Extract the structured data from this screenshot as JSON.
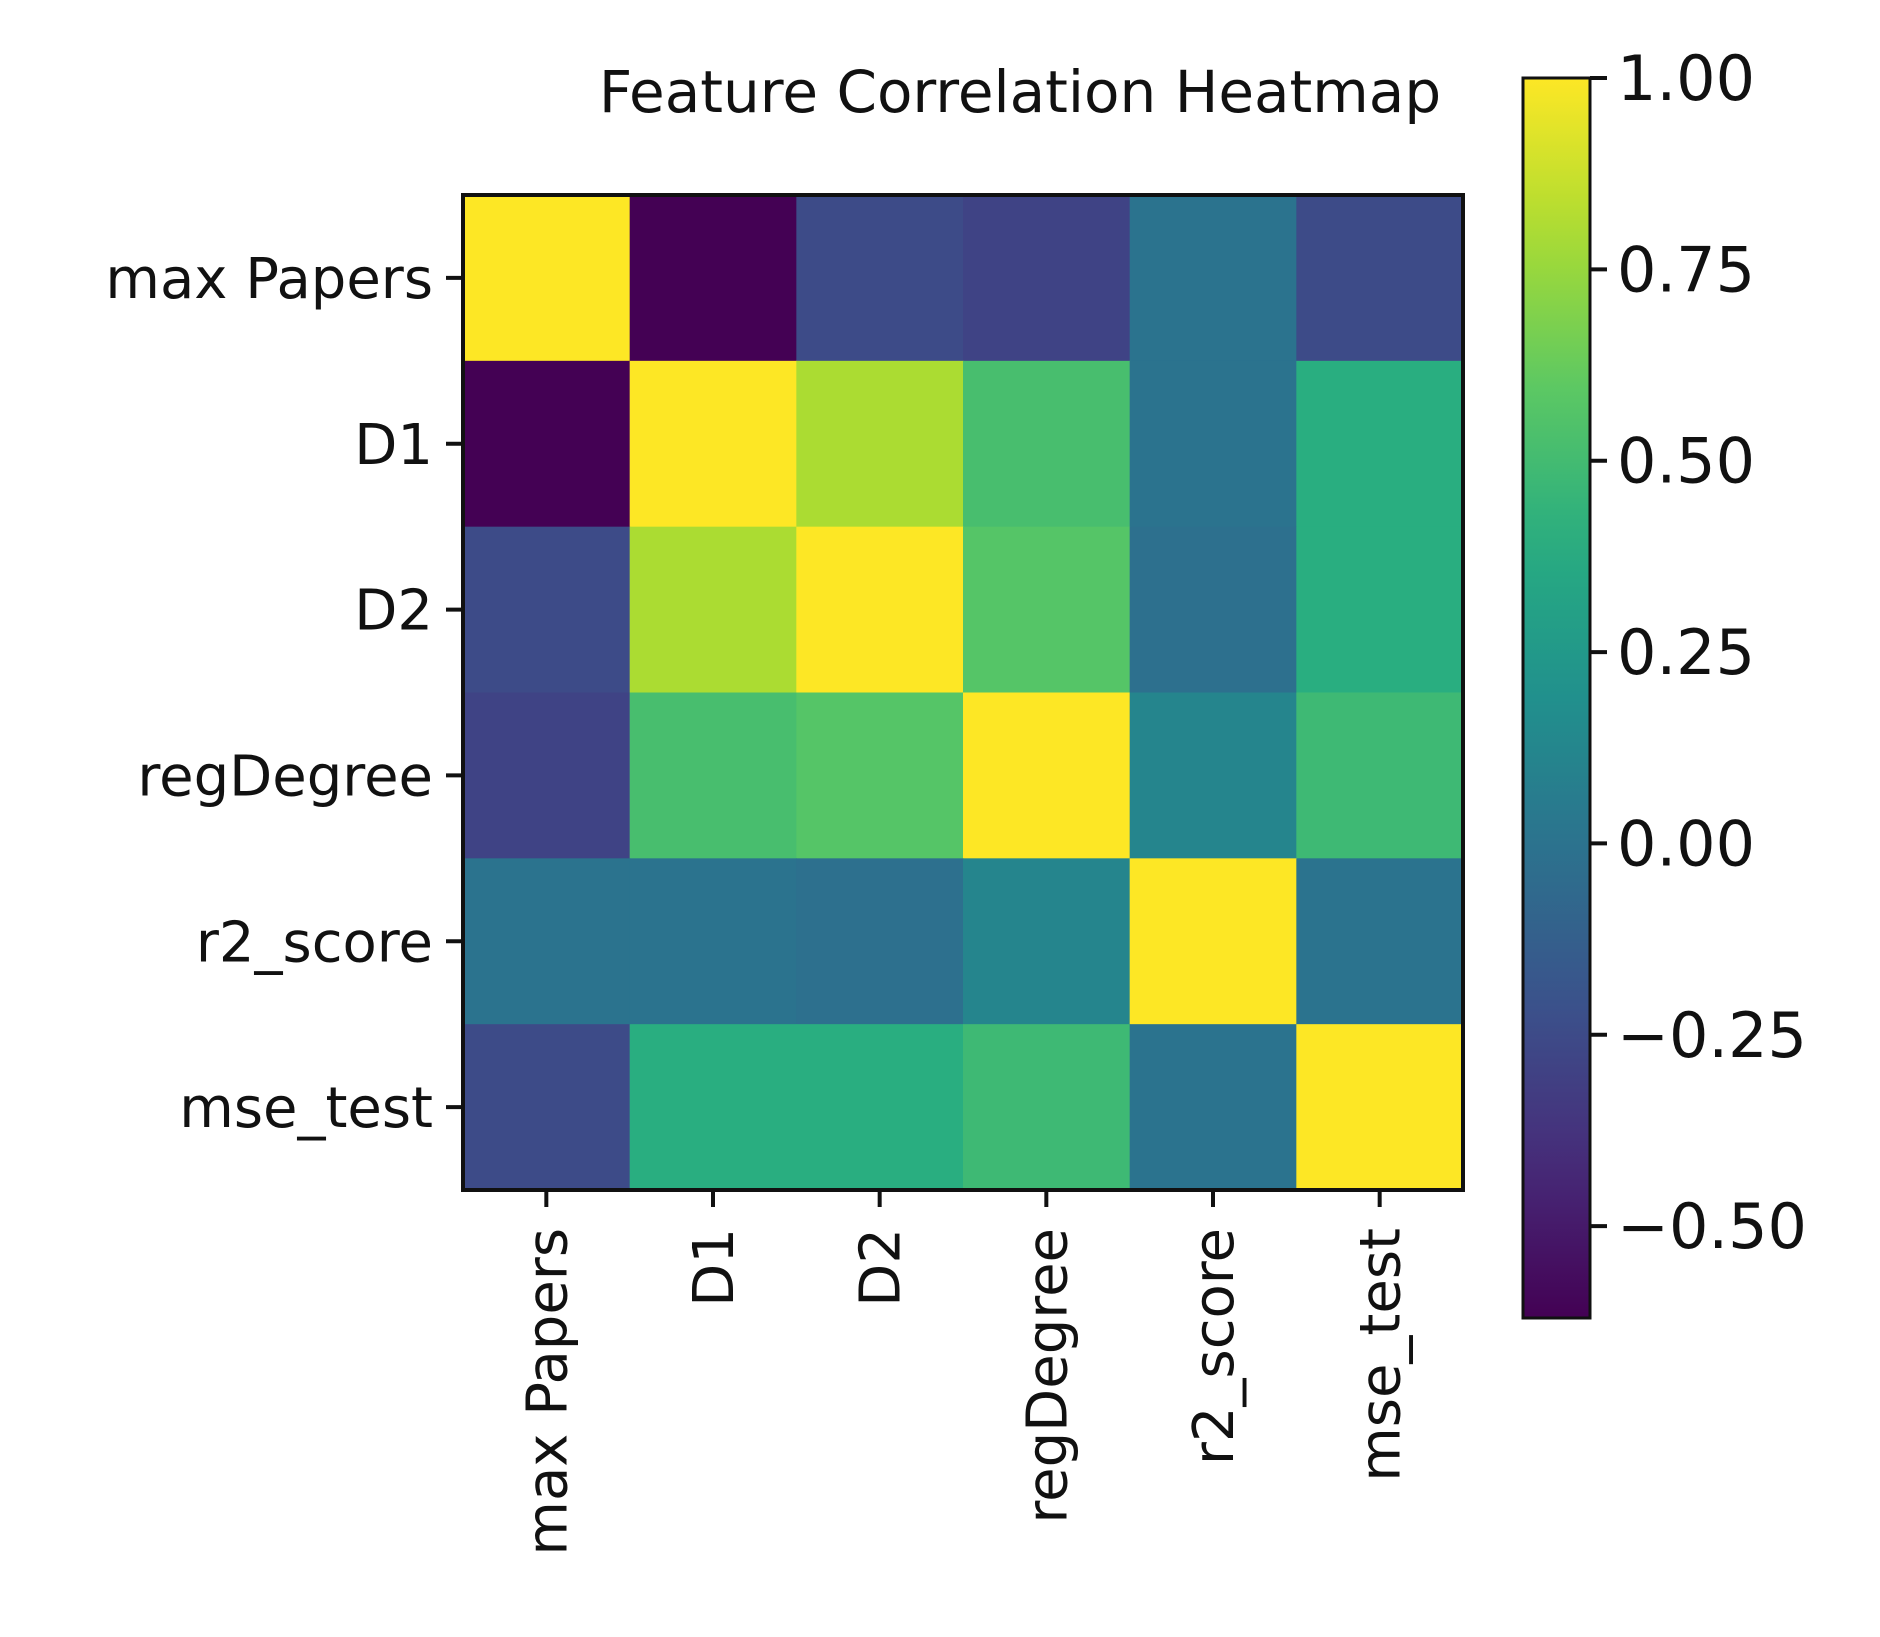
{
  "chart_data": {
    "type": "heatmap",
    "title": "Feature Correlation Heatmap",
    "xlabel": "",
    "ylabel": "",
    "categories": [
      "max Papers",
      "D1",
      "D2",
      "regDegree",
      "r2_score",
      "mse_test"
    ],
    "matrix": [
      [
        1.0,
        -0.62,
        -0.25,
        -0.29,
        0.0,
        -0.25
      ],
      [
        -0.62,
        1.0,
        0.8,
        0.52,
        0.0,
        0.4
      ],
      [
        -0.25,
        0.8,
        1.0,
        0.57,
        -0.02,
        0.4
      ],
      [
        -0.29,
        0.52,
        0.57,
        1.0,
        0.12,
        0.48
      ],
      [
        0.0,
        0.0,
        -0.02,
        0.12,
        1.0,
        0.0
      ],
      [
        -0.25,
        0.4,
        0.4,
        0.48,
        0.0,
        1.0
      ]
    ],
    "colorbar": {
      "colormap": "viridis",
      "range": [
        -0.62,
        1.0
      ],
      "ticks": [
        1.0,
        0.75,
        0.5,
        0.25,
        0.0,
        -0.25,
        -0.5
      ],
      "tick_labels": [
        "1.00",
        "0.75",
        "0.50",
        "0.25",
        "0.00",
        "−0.25",
        "−0.50"
      ]
    },
    "legend": "colorbar-right",
    "grid": false
  }
}
